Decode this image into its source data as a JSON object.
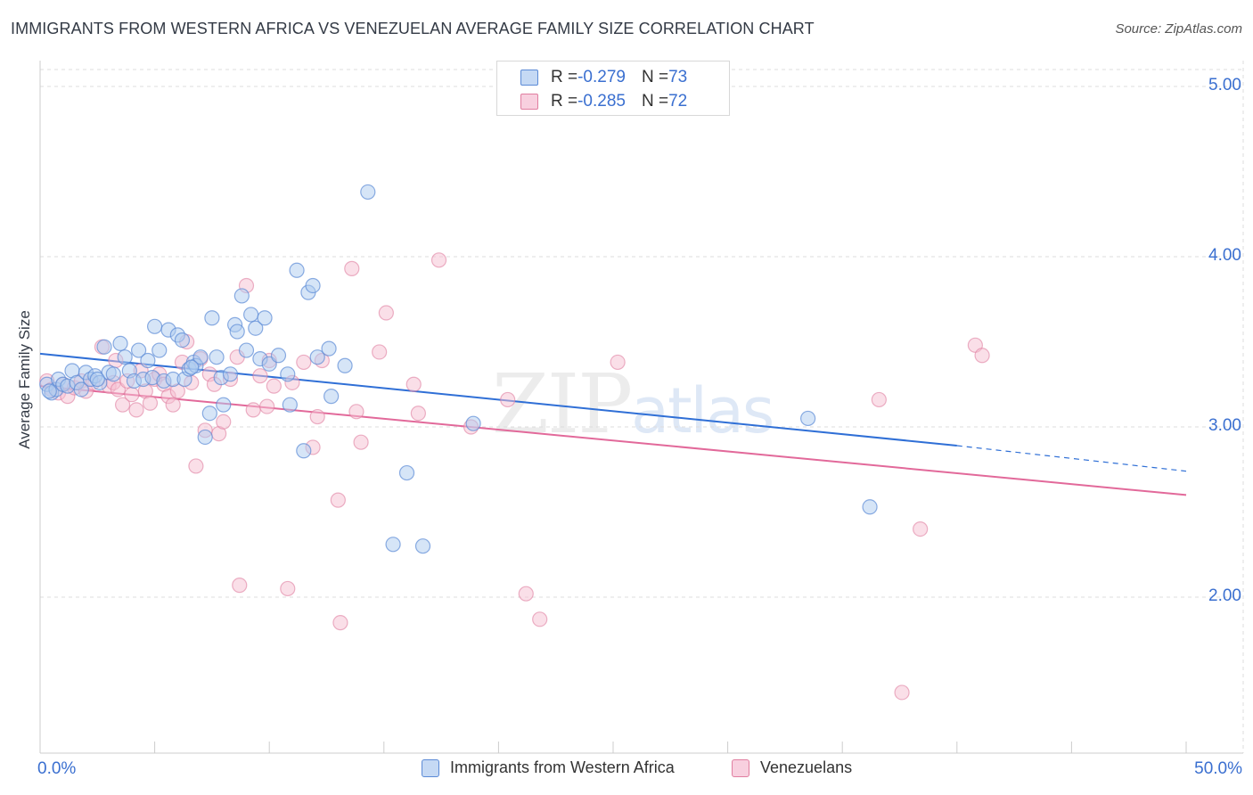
{
  "title": "IMMIGRANTS FROM WESTERN AFRICA VS VENEZUELAN AVERAGE FAMILY SIZE CORRELATION CHART",
  "source": "Source: ZipAtlas.com",
  "watermark": {
    "zip": "ZIP",
    "atlas": "atlas"
  },
  "colors": {
    "blue_fill": "#aecbf0",
    "blue_stroke": "#5b8ad6",
    "blue_line": "#2f6fd6",
    "pink_fill": "#f5bfd2",
    "pink_stroke": "#e07ea0",
    "pink_line": "#e2699a",
    "axis_text": "#3a6fd0",
    "grid": "#dddddd"
  },
  "legend": {
    "rows": [
      {
        "r_label": "R = ",
        "r_value": "-0.279",
        "n_label": "N = ",
        "n_value": "73"
      },
      {
        "r_label": "R = ",
        "r_value": "-0.285",
        "n_label": "N = ",
        "n_value": "72"
      }
    ]
  },
  "bottom_legend": {
    "series1": "Immigrants from Western Africa",
    "series2": "Venezuelans"
  },
  "chart_data": {
    "type": "scatter",
    "title": "IMMIGRANTS FROM WESTERN AFRICA VS VENEZUELAN AVERAGE FAMILY SIZE CORRELATION CHART",
    "xlabel": "",
    "ylabel": "Average Family Size",
    "xlim": [
      0,
      50
    ],
    "ylim": [
      1.0,
      5.1
    ],
    "x_tick_labels": [
      "0.0%",
      "50.0%"
    ],
    "y_ticks": [
      2.0,
      3.0,
      4.0,
      5.0
    ],
    "y_tick_labels": [
      "2.00",
      "3.00",
      "4.00",
      "5.00"
    ],
    "grid": true,
    "series": [
      {
        "name": "Immigrants from Western Africa",
        "trend": {
          "x": [
            0,
            40
          ],
          "y": [
            3.43,
            2.89
          ],
          "dashed_to_x": 50,
          "dashed_end_y": 2.74
        },
        "points": [
          [
            0.3,
            3.25
          ],
          [
            0.5,
            3.2
          ],
          [
            0.7,
            3.22
          ],
          [
            0.8,
            3.28
          ],
          [
            1.0,
            3.25
          ],
          [
            1.2,
            3.24
          ],
          [
            1.4,
            3.33
          ],
          [
            1.6,
            3.26
          ],
          [
            1.8,
            3.22
          ],
          [
            2.0,
            3.32
          ],
          [
            2.2,
            3.28
          ],
          [
            2.4,
            3.3
          ],
          [
            2.6,
            3.26
          ],
          [
            2.8,
            3.47
          ],
          [
            3.0,
            3.32
          ],
          [
            3.2,
            3.31
          ],
          [
            3.5,
            3.49
          ],
          [
            3.7,
            3.41
          ],
          [
            3.9,
            3.33
          ],
          [
            4.1,
            3.27
          ],
          [
            4.3,
            3.45
          ],
          [
            4.5,
            3.28
          ],
          [
            4.7,
            3.39
          ],
          [
            4.9,
            3.29
          ],
          [
            5.0,
            3.59
          ],
          [
            5.2,
            3.45
          ],
          [
            5.4,
            3.27
          ],
          [
            5.6,
            3.57
          ],
          [
            5.8,
            3.28
          ],
          [
            6.0,
            3.54
          ],
          [
            6.2,
            3.51
          ],
          [
            6.3,
            3.28
          ],
          [
            6.5,
            3.34
          ],
          [
            6.7,
            3.38
          ],
          [
            6.8,
            3.36
          ],
          [
            7.0,
            3.41
          ],
          [
            7.2,
            2.94
          ],
          [
            7.4,
            3.08
          ],
          [
            7.5,
            3.64
          ],
          [
            7.7,
            3.41
          ],
          [
            7.9,
            3.29
          ],
          [
            8.0,
            3.13
          ],
          [
            8.3,
            3.31
          ],
          [
            8.5,
            3.6
          ],
          [
            8.6,
            3.56
          ],
          [
            8.8,
            3.77
          ],
          [
            9.0,
            3.45
          ],
          [
            9.2,
            3.66
          ],
          [
            9.4,
            3.58
          ],
          [
            9.6,
            3.4
          ],
          [
            9.8,
            3.64
          ],
          [
            10.0,
            3.37
          ],
          [
            10.4,
            3.42
          ],
          [
            10.8,
            3.31
          ],
          [
            10.9,
            3.13
          ],
          [
            11.2,
            3.92
          ],
          [
            11.5,
            2.86
          ],
          [
            11.7,
            3.79
          ],
          [
            11.9,
            3.83
          ],
          [
            12.1,
            3.41
          ],
          [
            12.6,
            3.46
          ],
          [
            12.7,
            3.18
          ],
          [
            13.3,
            3.36
          ],
          [
            14.3,
            4.38
          ],
          [
            16.0,
            2.73
          ],
          [
            15.4,
            2.31
          ],
          [
            16.7,
            2.3
          ],
          [
            18.9,
            3.02
          ],
          [
            33.5,
            3.05
          ],
          [
            36.2,
            2.53
          ],
          [
            0.4,
            3.21
          ],
          [
            2.5,
            3.28
          ],
          [
            6.6,
            3.35
          ]
        ]
      },
      {
        "name": "Venezuelans",
        "trend": {
          "x": [
            0,
            50
          ],
          "y": [
            3.24,
            2.6
          ]
        },
        "points": [
          [
            0.3,
            3.27
          ],
          [
            0.5,
            3.22
          ],
          [
            0.8,
            3.2
          ],
          [
            1.0,
            3.25
          ],
          [
            1.2,
            3.18
          ],
          [
            1.5,
            3.23
          ],
          [
            1.8,
            3.27
          ],
          [
            2.0,
            3.21
          ],
          [
            2.3,
            3.26
          ],
          [
            2.7,
            3.47
          ],
          [
            3.0,
            3.24
          ],
          [
            3.2,
            3.26
          ],
          [
            3.4,
            3.22
          ],
          [
            3.6,
            3.13
          ],
          [
            3.8,
            3.27
          ],
          [
            4.0,
            3.19
          ],
          [
            4.2,
            3.1
          ],
          [
            4.4,
            3.33
          ],
          [
            4.6,
            3.21
          ],
          [
            4.8,
            3.14
          ],
          [
            5.0,
            3.28
          ],
          [
            5.2,
            3.31
          ],
          [
            5.4,
            3.25
          ],
          [
            5.6,
            3.18
          ],
          [
            5.8,
            3.13
          ],
          [
            6.0,
            3.21
          ],
          [
            6.2,
            3.38
          ],
          [
            6.4,
            3.5
          ],
          [
            6.6,
            3.26
          ],
          [
            6.8,
            2.77
          ],
          [
            7.0,
            3.4
          ],
          [
            7.2,
            2.98
          ],
          [
            7.4,
            3.31
          ],
          [
            7.6,
            3.25
          ],
          [
            7.8,
            2.96
          ],
          [
            8.0,
            3.03
          ],
          [
            8.3,
            3.28
          ],
          [
            8.6,
            3.41
          ],
          [
            9.0,
            3.83
          ],
          [
            9.3,
            3.1
          ],
          [
            9.6,
            3.3
          ],
          [
            10.0,
            3.39
          ],
          [
            10.2,
            3.24
          ],
          [
            11.0,
            3.26
          ],
          [
            11.5,
            3.38
          ],
          [
            11.9,
            2.88
          ],
          [
            12.1,
            3.06
          ],
          [
            12.3,
            3.39
          ],
          [
            13.0,
            2.57
          ],
          [
            13.6,
            3.93
          ],
          [
            13.8,
            3.09
          ],
          [
            14.0,
            2.91
          ],
          [
            14.8,
            3.44
          ],
          [
            15.1,
            3.67
          ],
          [
            16.3,
            3.25
          ],
          [
            16.5,
            3.08
          ],
          [
            17.4,
            3.98
          ],
          [
            18.8,
            3.0
          ],
          [
            20.4,
            3.16
          ],
          [
            21.2,
            2.02
          ],
          [
            21.8,
            1.87
          ],
          [
            25.2,
            3.38
          ],
          [
            10.8,
            2.05
          ],
          [
            13.1,
            1.85
          ],
          [
            8.7,
            2.07
          ],
          [
            36.6,
            3.16
          ],
          [
            38.4,
            2.4
          ],
          [
            37.6,
            1.44
          ],
          [
            40.8,
            3.48
          ],
          [
            41.1,
            3.42
          ],
          [
            3.3,
            3.39
          ],
          [
            9.9,
            3.12
          ]
        ]
      }
    ]
  }
}
